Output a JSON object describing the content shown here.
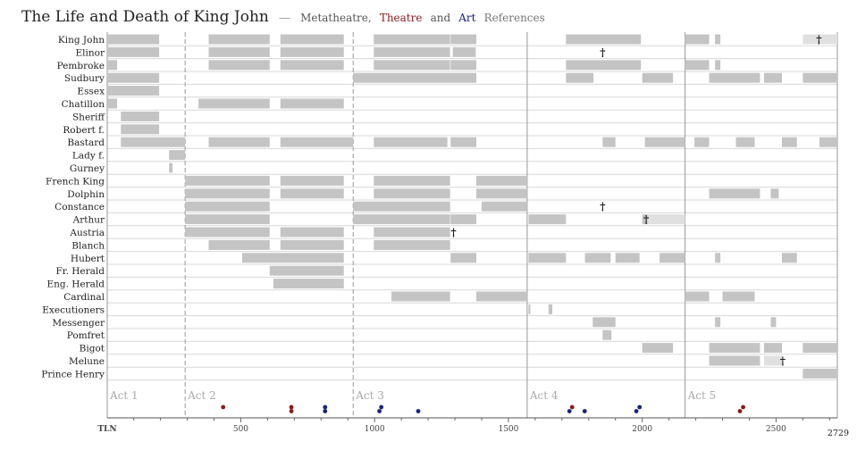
{
  "title": {
    "main": "The Life and Death of King John",
    "sep": "—",
    "part1": "Metatheatre,",
    "part2": "Theatre",
    "part3": "and",
    "part4": "Art",
    "part5": "References",
    "colors": {
      "metatheatre": "#333333",
      "theatre": "#8b1a1a",
      "art": "#1a237e",
      "references": "#777777"
    }
  },
  "chart_data": {
    "type": "timeline",
    "xlim": [
      1,
      2729
    ],
    "x_ticks": [
      500,
      1000,
      1500,
      2000,
      2500
    ],
    "x_axis_label": "TLN",
    "end_label": "2729",
    "act_boundaries": [
      {
        "tln": 1,
        "style": "solid"
      },
      {
        "tln": 292,
        "style": "dashed"
      },
      {
        "tln": 920,
        "style": "dashed"
      },
      {
        "tln": 1570,
        "style": "solid"
      },
      {
        "tln": 2160,
        "style": "solid"
      },
      {
        "tln": 2729,
        "style": "solid"
      }
    ],
    "acts": [
      {
        "label": "Act 1",
        "start": 1
      },
      {
        "label": "Act 2",
        "start": 292
      },
      {
        "label": "Act 3",
        "start": 920
      },
      {
        "label": "Act 4",
        "start": 1570
      },
      {
        "label": "Act 5",
        "start": 2160
      }
    ],
    "characters": [
      {
        "name": "King John",
        "segments": [
          [
            1,
            195
          ],
          [
            380,
            608
          ],
          [
            648,
            885
          ],
          [
            997,
            1282
          ],
          [
            1284,
            1380
          ],
          [
            1715,
            1995
          ],
          [
            2160,
            2250
          ],
          [
            2272,
            2292
          ],
          [
            2600,
            2729,
            "light"
          ]
        ],
        "dagger": 2660
      },
      {
        "name": "Elinor",
        "segments": [
          [
            1,
            195
          ],
          [
            380,
            608
          ],
          [
            648,
            885
          ],
          [
            997,
            1282
          ],
          [
            1292,
            1378
          ]
        ],
        "dagger": 1852
      },
      {
        "name": "Pembroke",
        "segments": [
          [
            1,
            38
          ],
          [
            380,
            608
          ],
          [
            648,
            885
          ],
          [
            997,
            1282
          ],
          [
            1284,
            1380
          ],
          [
            1715,
            1995
          ],
          [
            2160,
            2250
          ],
          [
            2272,
            2292
          ]
        ]
      },
      {
        "name": "Sudbury",
        "segments": [
          [
            1,
            195
          ],
          [
            920,
            1380
          ],
          [
            1715,
            1818
          ],
          [
            2000,
            2115
          ],
          [
            2250,
            2440
          ],
          [
            2455,
            2522
          ],
          [
            2600,
            2729
          ]
        ]
      },
      {
        "name": "Essex",
        "segments": [
          [
            1,
            195
          ]
        ]
      },
      {
        "name": "Chatillon",
        "segments": [
          [
            1,
            38
          ],
          [
            342,
            608
          ],
          [
            648,
            885
          ]
        ]
      },
      {
        "name": "Sheriff",
        "segments": [
          [
            52,
            195
          ]
        ]
      },
      {
        "name": "Robert f.",
        "segments": [
          [
            52,
            195
          ]
        ]
      },
      {
        "name": "Bastard",
        "segments": [
          [
            52,
            292
          ],
          [
            380,
            608
          ],
          [
            648,
            920
          ],
          [
            997,
            1272
          ],
          [
            1284,
            1380
          ],
          [
            1852,
            1900
          ],
          [
            2010,
            2160
          ],
          [
            2195,
            2250
          ],
          [
            2350,
            2420
          ],
          [
            2522,
            2578
          ],
          [
            2662,
            2729
          ]
        ]
      },
      {
        "name": "Lady f.",
        "segments": [
          [
            232,
            292
          ]
        ]
      },
      {
        "name": "Gurney",
        "segments": [
          [
            232,
            245
          ]
        ]
      },
      {
        "name": "French King",
        "segments": [
          [
            292,
            608
          ],
          [
            648,
            885
          ],
          [
            997,
            1282
          ],
          [
            1380,
            1570
          ]
        ]
      },
      {
        "name": "Dolphin",
        "segments": [
          [
            292,
            608
          ],
          [
            648,
            885
          ],
          [
            997,
            1282
          ],
          [
            1380,
            1570
          ],
          [
            2250,
            2440
          ],
          [
            2480,
            2510
          ]
        ]
      },
      {
        "name": "Constance",
        "segments": [
          [
            292,
            608
          ],
          [
            920,
            1282
          ],
          [
            1400,
            1570
          ]
        ],
        "dagger": 1852
      },
      {
        "name": "Arthur",
        "segments": [
          [
            292,
            608
          ],
          [
            920,
            1282
          ],
          [
            1284,
            1380
          ],
          [
            1575,
            1715
          ],
          [
            2000,
            2020
          ],
          [
            2020,
            2160,
            "light"
          ]
        ],
        "dagger": 2015
      },
      {
        "name": "Austria",
        "segments": [
          [
            292,
            608
          ],
          [
            648,
            885
          ],
          [
            997,
            1282
          ]
        ],
        "dagger": 1295
      },
      {
        "name": "Blanch",
        "segments": [
          [
            380,
            608
          ],
          [
            648,
            885
          ],
          [
            997,
            1282
          ]
        ]
      },
      {
        "name": "Hubert",
        "segments": [
          [
            505,
            885
          ],
          [
            1284,
            1380
          ],
          [
            1575,
            1715
          ],
          [
            1786,
            1882
          ],
          [
            1900,
            1990
          ],
          [
            2065,
            2160
          ],
          [
            2272,
            2292
          ],
          [
            2522,
            2578
          ]
        ]
      },
      {
        "name": "Fr. Herald",
        "segments": [
          [
            608,
            885
          ]
        ]
      },
      {
        "name": "Eng. Herald",
        "segments": [
          [
            622,
            885
          ]
        ]
      },
      {
        "name": "Cardinal",
        "segments": [
          [
            1063,
            1282
          ],
          [
            1380,
            1570
          ],
          [
            2160,
            2250
          ],
          [
            2300,
            2420
          ]
        ]
      },
      {
        "name": "Executioners",
        "segments": [
          [
            1575,
            1582
          ],
          [
            1650,
            1664
          ]
        ]
      },
      {
        "name": "Messenger",
        "segments": [
          [
            1815,
            1900
          ],
          [
            2272,
            2292
          ],
          [
            2480,
            2500
          ]
        ]
      },
      {
        "name": "Pomfret",
        "segments": [
          [
            1852,
            1885
          ]
        ]
      },
      {
        "name": "Bigot",
        "segments": [
          [
            2000,
            2115
          ],
          [
            2250,
            2440
          ],
          [
            2455,
            2522
          ],
          [
            2600,
            2729
          ]
        ]
      },
      {
        "name": "Melune",
        "segments": [
          [
            2250,
            2440
          ],
          [
            2455,
            2522,
            "light"
          ]
        ],
        "dagger": 2525
      },
      {
        "name": "Prince Henry",
        "segments": [
          [
            2600,
            2729
          ]
        ]
      }
    ],
    "references": [
      {
        "tln": 434,
        "level": 0,
        "kind": "theatre"
      },
      {
        "tln": 689,
        "level": 0,
        "kind": "theatre"
      },
      {
        "tln": 689,
        "level": 1,
        "kind": "theatre"
      },
      {
        "tln": 815,
        "level": 0,
        "kind": "art"
      },
      {
        "tln": 815,
        "level": 1,
        "kind": "art"
      },
      {
        "tln": 1025,
        "level": 0,
        "kind": "art"
      },
      {
        "tln": 1018,
        "level": 1,
        "kind": "art"
      },
      {
        "tln": 1163,
        "level": 1,
        "kind": "art"
      },
      {
        "tln": 1738,
        "level": 0,
        "kind": "theatre"
      },
      {
        "tln": 1728,
        "level": 1,
        "kind": "art"
      },
      {
        "tln": 1785,
        "level": 1,
        "kind": "art"
      },
      {
        "tln": 1990,
        "level": 0,
        "kind": "art"
      },
      {
        "tln": 1978,
        "level": 1,
        "kind": "art"
      },
      {
        "tln": 2377,
        "level": 0,
        "kind": "theatre"
      },
      {
        "tln": 2365,
        "level": 1,
        "kind": "theatre"
      }
    ],
    "colors": {
      "bar": "#c4c4c4",
      "bar_light": "#e0e0e0",
      "row_line": "#d8d8d8",
      "act_line": "#999999",
      "theatre": "#8b1a1a",
      "art": "#1a237e"
    }
  }
}
